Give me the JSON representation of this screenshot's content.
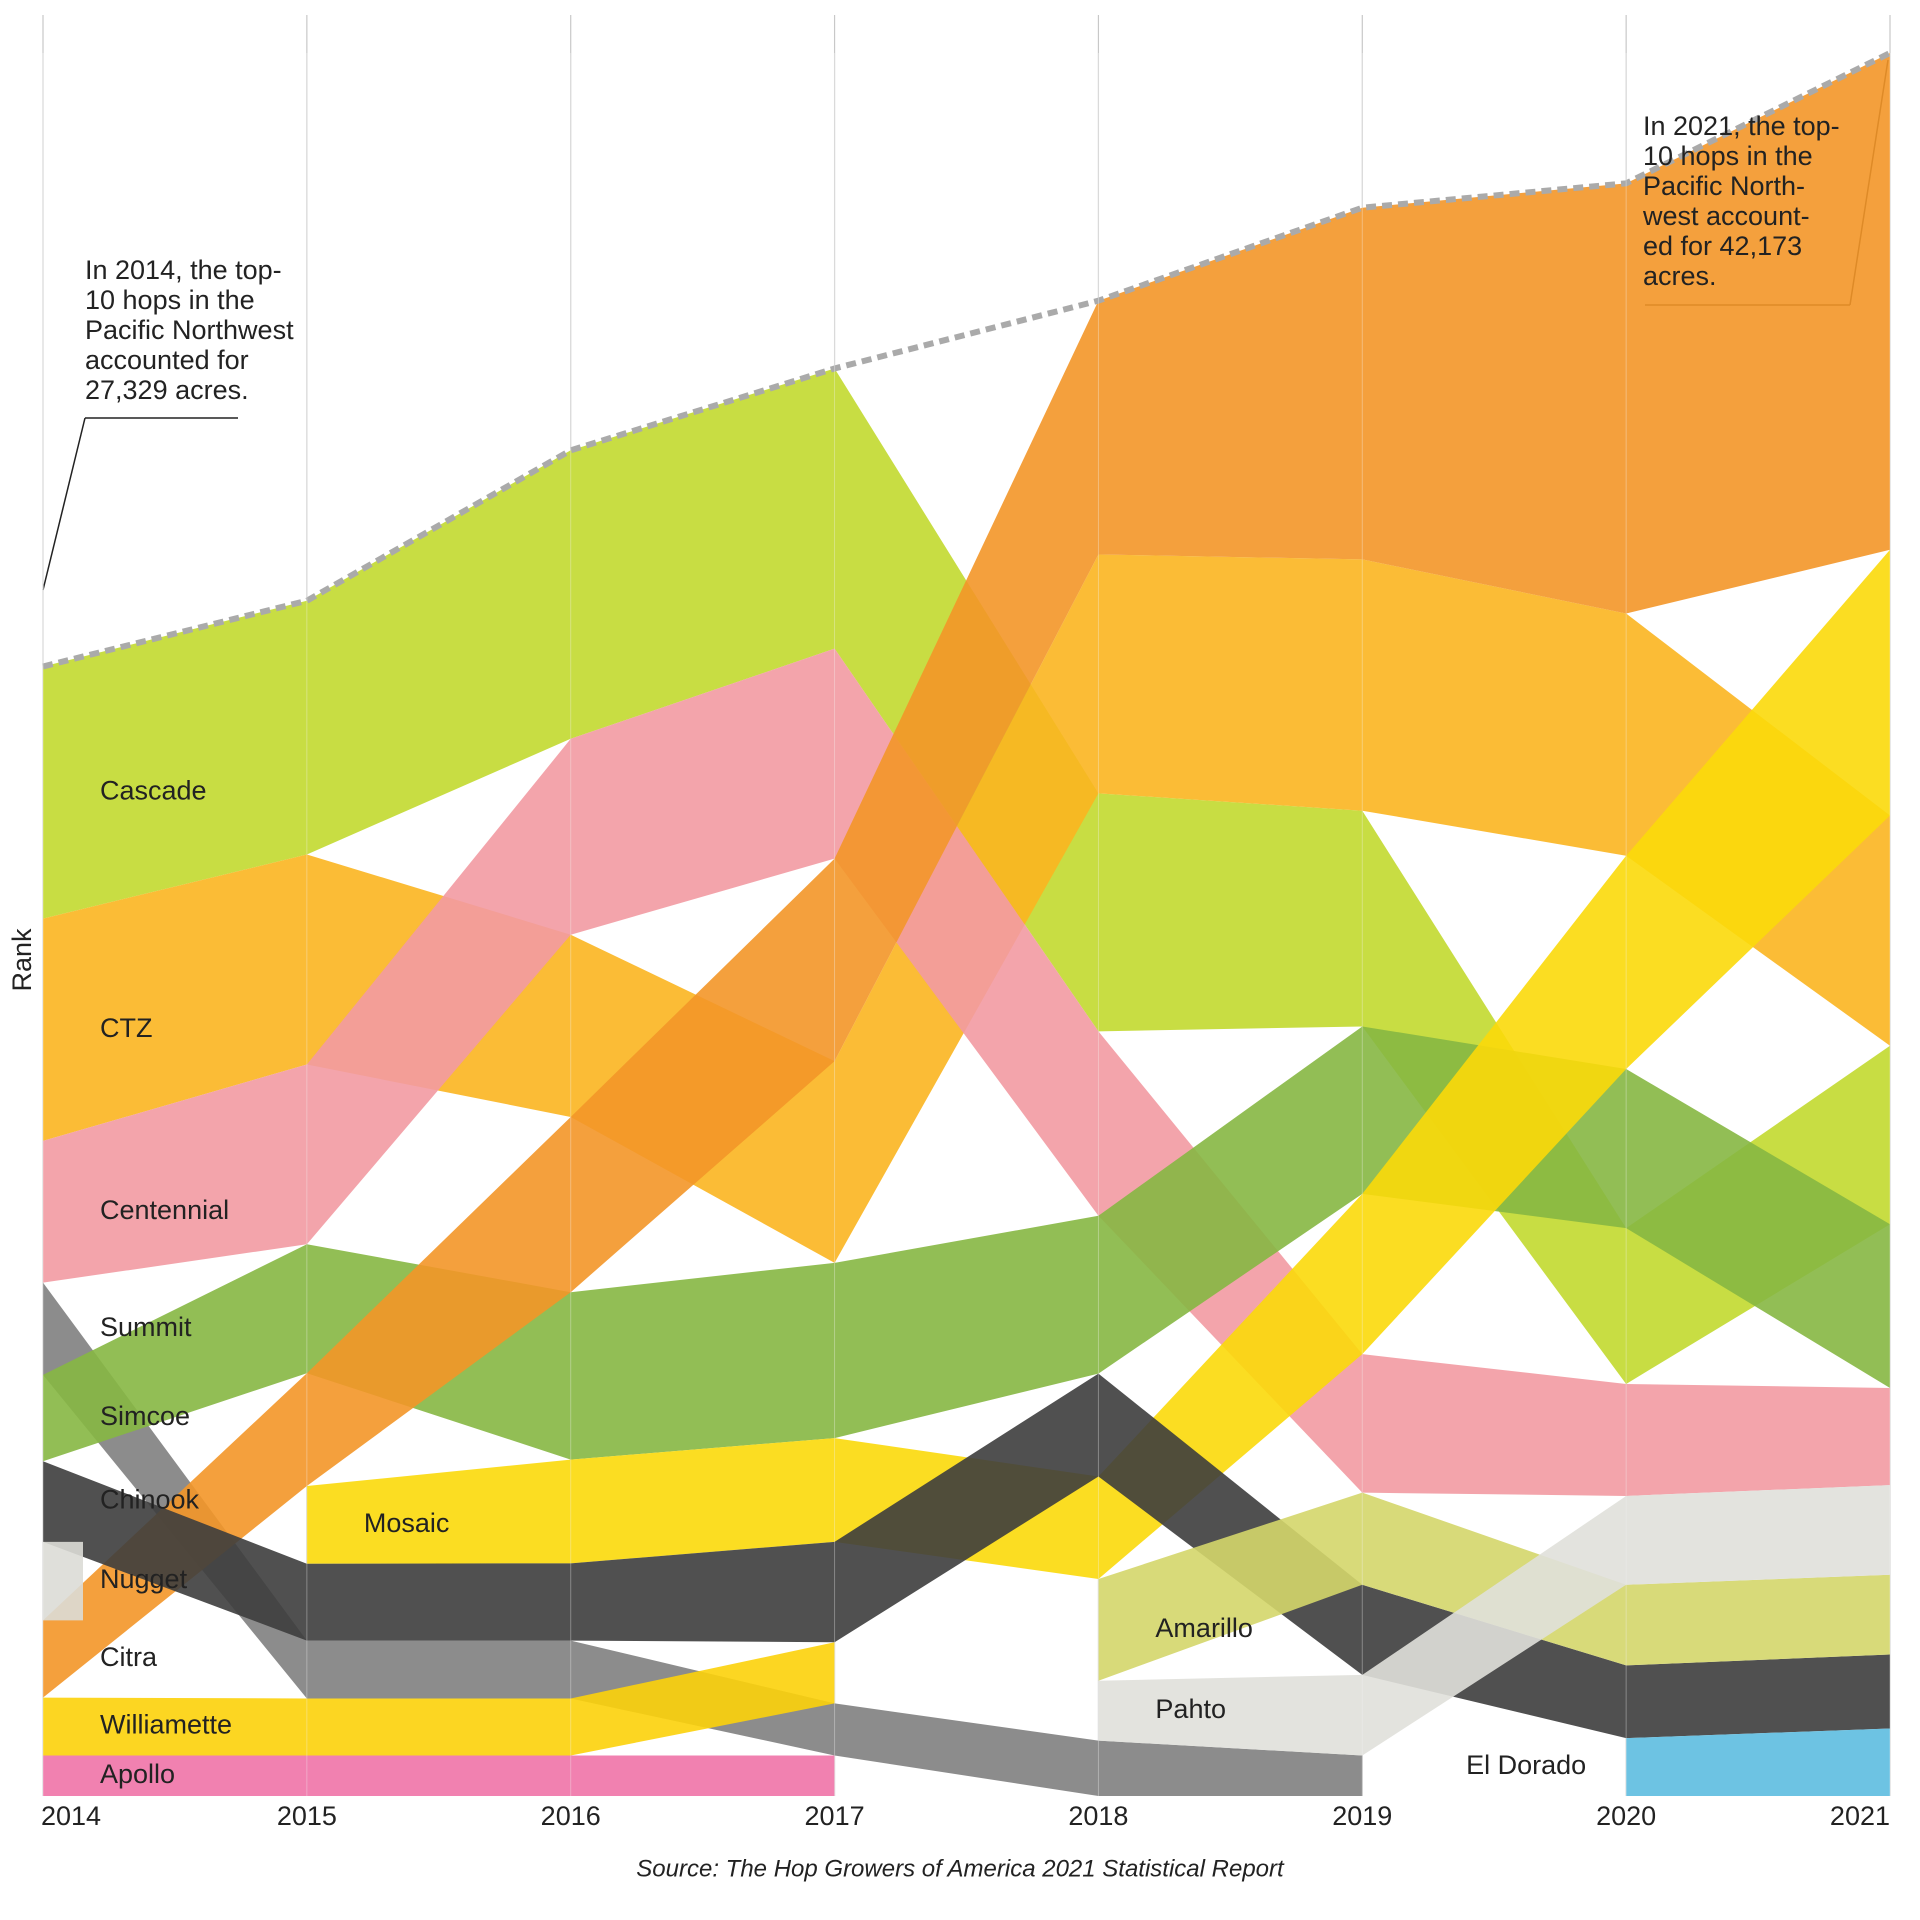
{
  "chart_data": {
    "type": "ranked-stream",
    "y_label": "Rank",
    "source": "Source: The Hop Growers of America 2021 Statistical Report",
    "grid": true,
    "categories": [
      "2014",
      "2015",
      "2016",
      "2017",
      "2018",
      "2019",
      "2020",
      "2021"
    ],
    "series": [
      {
        "name": "Cascade",
        "color": "#c2d92f",
        "values": [
          6099,
          6140,
          6980,
          6780,
          5760,
          5220,
          3770,
          4320
        ]
      },
      {
        "name": "CTZ",
        "color": "#fbb520",
        "values": [
          5380,
          5080,
          4410,
          4880,
          5780,
          6080,
          5860,
          5570
        ]
      },
      {
        "name": "Centennial",
        "color": "#f29aa2",
        "values": [
          3430,
          4350,
          4740,
          5080,
          4460,
          3350,
          2710,
          2350
        ]
      },
      {
        "name": "Summit",
        "color": "#808080",
        "values": [
          2230,
          1400,
          1400,
          1260,
          1340,
          980,
          null,
          null
        ]
      },
      {
        "name": "Simcoe",
        "color": "#86b742",
        "values": [
          2090,
          3120,
          4050,
          4240,
          3820,
          4050,
          3850,
          3960
        ]
      },
      {
        "name": "Citra",
        "color": "#f39628",
        "values": [
          1870,
          2730,
          4240,
          4900,
          6140,
          8510,
          10410,
          12020
        ]
      },
      {
        "name": "Mosaic",
        "color": "#fbd90a",
        "values": [
          null,
          1880,
          2510,
          2510,
          2480,
          3880,
          5160,
          6430
        ]
      },
      {
        "name": "Chinook",
        "color": "#3d3d3d",
        "values": [
          1950,
          1860,
          1870,
          2430,
          2490,
          2180,
          1760,
          1790
        ]
      },
      {
        "name": "Nugget",
        "color": "#dcdcd6",
        "values": [
          1900,
          null,
          null,
          null,
          null,
          null,
          null,
          null
        ]
      },
      {
        "name": "Williamette",
        "color": "#fcd20a",
        "values": [
          1400,
          1380,
          1380,
          1480,
          null,
          null,
          null,
          null
        ]
      },
      {
        "name": "Apollo",
        "color": "#ef73a7",
        "values": [
          980,
          980,
          980,
          980,
          null,
          null,
          null,
          null
        ]
      },
      {
        "name": "Amarillo",
        "color": "#d4d66a",
        "values": [
          null,
          null,
          null,
          null,
          2460,
          2230,
          1950,
          1930
        ]
      },
      {
        "name": "Pahto",
        "color": "#e0e0da",
        "values": [
          null,
          null,
          null,
          null,
          1450,
          1950,
          2150,
          2170
        ]
      },
      {
        "name": "El Dorado",
        "color": "#5dbde0",
        "values": [
          null,
          null,
          null,
          null,
          null,
          null,
          1400,
          1633
        ]
      }
    ],
    "annotations": [
      {
        "lines": [
          "In 2014, the top-",
          "10 hops in the",
          "Pacific Northwest",
          "accounted for",
          "27,329 acres."
        ]
      },
      {
        "lines": [
          "In 2021, the top-",
          "10 hops in the",
          "Pacific North-",
          "west account-",
          "ed for 42,173",
          "acres."
        ]
      }
    ]
  }
}
